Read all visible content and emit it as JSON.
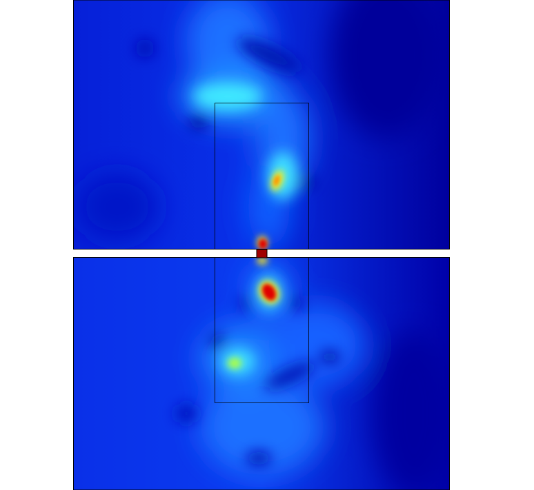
{
  "plot": {
    "type": "heatmap",
    "colormap": "jet",
    "colors": {
      "background": "#ffffff",
      "field_low": "#00009a",
      "field_base": "#0414d0",
      "field_mid": "#1a6cff",
      "field_cyan": "#38e6ff",
      "field_yellow": "#f0f020",
      "field_red": "#e00000",
      "field_darkred": "#800000",
      "outline": "#000000"
    }
  }
}
